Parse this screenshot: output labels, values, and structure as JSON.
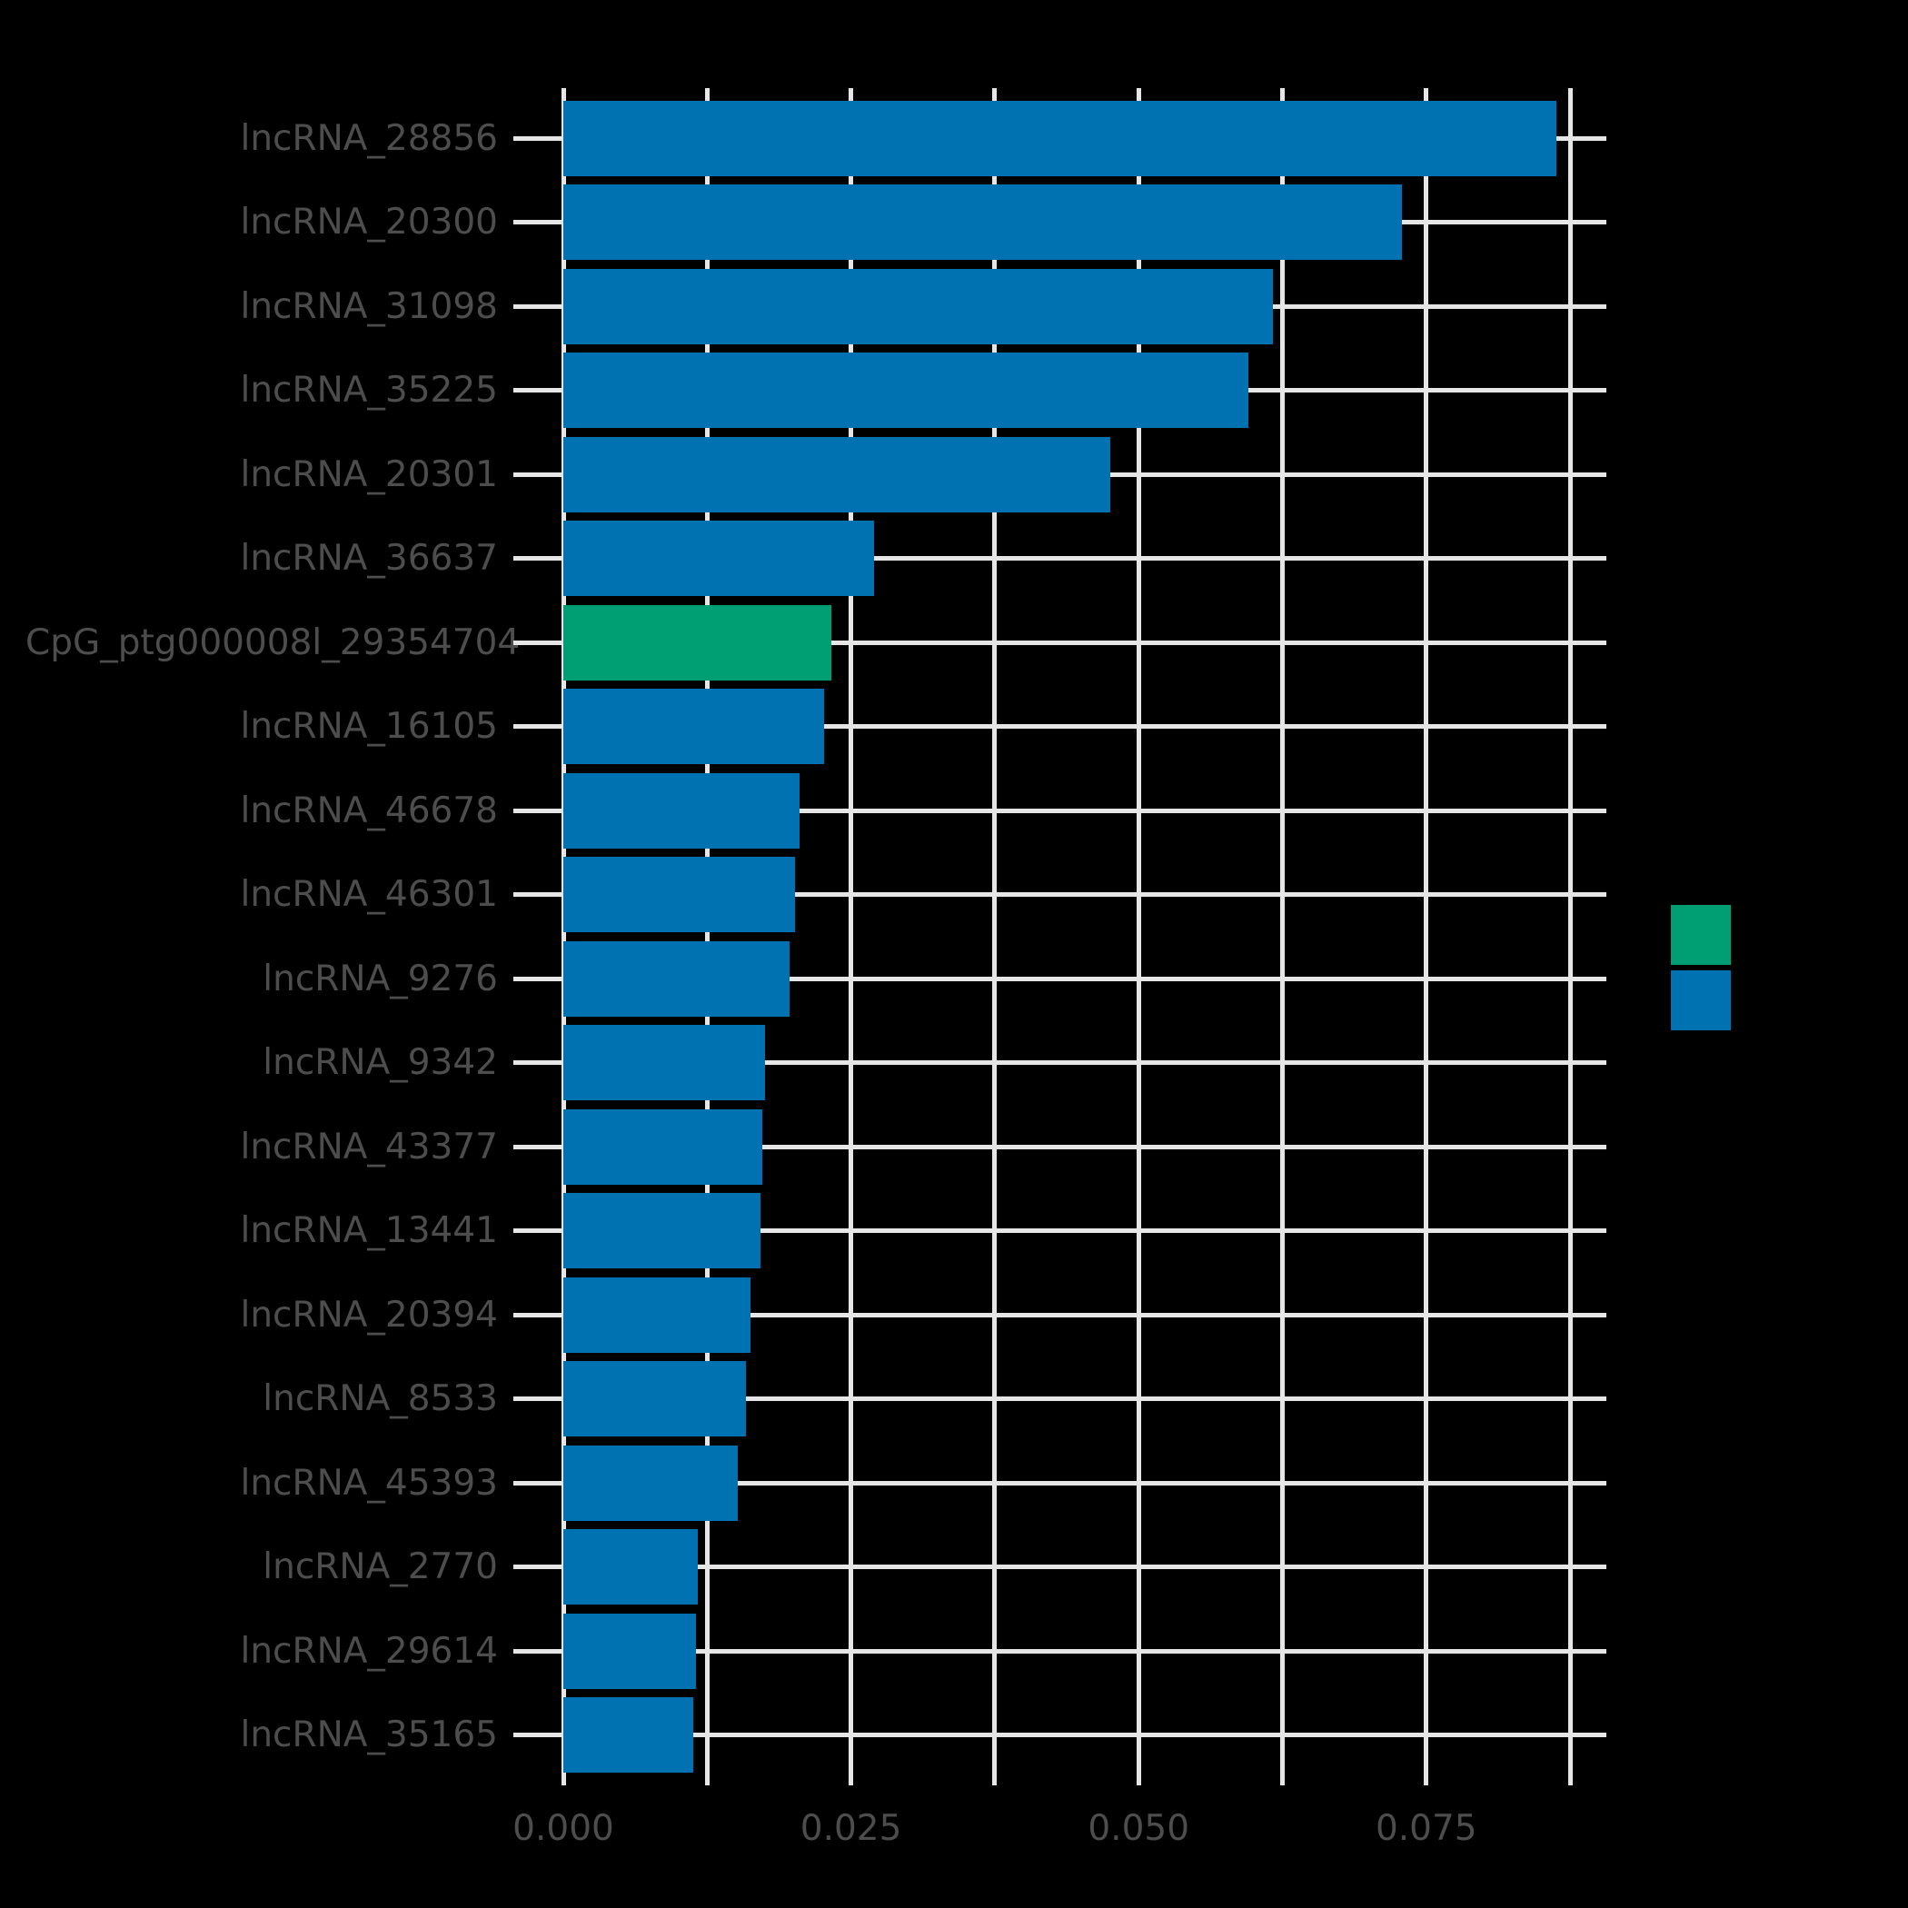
{
  "chart_data": {
    "type": "bar",
    "orientation": "horizontal",
    "title": "",
    "xlabel": "",
    "ylabel": "",
    "categories": [
      "lncRNA_28856",
      "lncRNA_20300",
      "lncRNA_31098",
      "lncRNA_35225",
      "lncRNA_20301",
      "lncRNA_36637",
      "CpG_ptg000008l_29354704",
      "lncRNA_16105",
      "lncRNA_46678",
      "lncRNA_46301",
      "lncRNA_9276",
      "lncRNA_9342",
      "lncRNA_43377",
      "lncRNA_13441",
      "lncRNA_20394",
      "lncRNA_8533",
      "lncRNA_45393",
      "lncRNA_2770",
      "lncRNA_29614",
      "lncRNA_35165"
    ],
    "values": [
      0.0863,
      0.0729,
      0.0617,
      0.0595,
      0.0475,
      0.027,
      0.0233,
      0.0227,
      0.0205,
      0.0201,
      0.0197,
      0.0175,
      0.0173,
      0.0171,
      0.0163,
      0.0159,
      0.0152,
      0.0117,
      0.0115,
      0.0113
    ],
    "highlight_category": "CpG_ptg000008l_29354704",
    "colors": {
      "default_bar": "#0072B2",
      "highlight_bar": "#009E73",
      "grid": "#E6E6E6",
      "text": "#4D4D4D",
      "background": "#000000"
    },
    "x_tick_labels": [
      "0.000",
      "0.025",
      "0.050",
      "0.075"
    ],
    "x_tick_values": [
      0.0,
      0.025,
      0.05,
      0.075
    ],
    "x_minor_step": 0.0125,
    "x_minor_gridline_count": 8,
    "xlim": [
      -0.00434,
      0.09063
    ],
    "grid": true,
    "legend_position": "right",
    "legend": [
      {
        "label": "",
        "color": "#009E73"
      },
      {
        "label": "",
        "color": "#0072B2"
      }
    ]
  }
}
